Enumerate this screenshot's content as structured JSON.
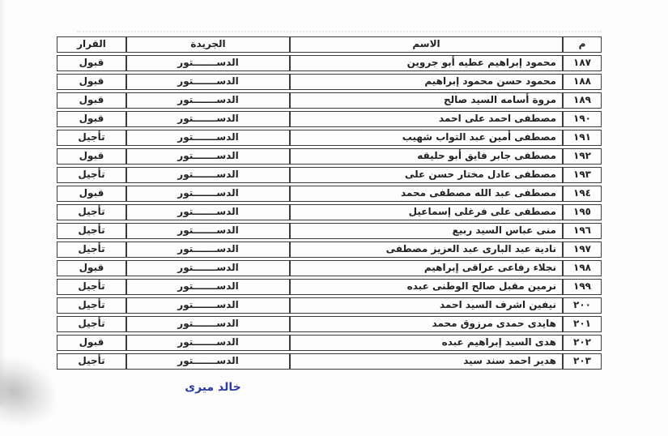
{
  "colors": {
    "page_bg": "#fdfdfd",
    "table_border": "#3b3b3b",
    "text": "#222222",
    "signature_blue": "#2b3aa6"
  },
  "table": {
    "headers": {
      "index": "م",
      "name": "الاسم",
      "newspaper": "الجريدة",
      "decision": "القرار"
    },
    "rows": [
      {
        "index": "١٨٧",
        "name": "محمود إبراهيم عطيه أبو جروين",
        "newspaper": "الدســـــــتور",
        "decision": "قبول"
      },
      {
        "index": "١٨٨",
        "name": "محمود حسن محمود إبراهيم",
        "newspaper": "الدســـــــتور",
        "decision": "قبول"
      },
      {
        "index": "١٨٩",
        "name": "مروة أسامه السيد صالح",
        "newspaper": "الدســـــــتور",
        "decision": "قبول"
      },
      {
        "index": "١٩٠",
        "name": "مصطفى احمد على احمد",
        "newspaper": "الدســـــــتور",
        "decision": "قبول"
      },
      {
        "index": "١٩١",
        "name": "مصطفى أمين عبد التواب شهيب",
        "newspaper": "الدســـــــتور",
        "decision": "تأجيل"
      },
      {
        "index": "١٩٢",
        "name": "مصطفى جابر فايق أبو حليقه",
        "newspaper": "الدســـــــتور",
        "decision": "قبول"
      },
      {
        "index": "١٩٣",
        "name": "مصطفى عادل مختار حسن على",
        "newspaper": "الدســـــــتور",
        "decision": "تأجيل"
      },
      {
        "index": "١٩٤",
        "name": "مصطفى عبد الله مصطفى محمد",
        "newspaper": "الدســـــــتور",
        "decision": "قبول"
      },
      {
        "index": "١٩٥",
        "name": "مصطفى على فرغلى إسماعيل",
        "newspaper": "الدســـــــتور",
        "decision": "تأجيل"
      },
      {
        "index": "١٩٦",
        "name": "منى عباس السيد ربيع",
        "newspaper": "الدســـــــتور",
        "decision": "تأجيل"
      },
      {
        "index": "١٩٧",
        "name": "نادية عبد البارى عبد العزيز مصطفى",
        "newspaper": "الدســـــــتور",
        "decision": "تأجيل"
      },
      {
        "index": "١٩٨",
        "name": "نجلاء رفاعى عراقى إبراهيم",
        "newspaper": "الدســـــــتور",
        "decision": "قبول"
      },
      {
        "index": "١٩٩",
        "name": "نرمين مقبل صالح الوطنى عبده",
        "newspaper": "الدســـــــتور",
        "decision": "تأجيل"
      },
      {
        "index": "٢٠٠",
        "name": "نيفين اشرف السيد احمد",
        "newspaper": "الدســـــــتور",
        "decision": "تأجيل"
      },
      {
        "index": "٢٠١",
        "name": "هايدى حمدى مرزوق محمد",
        "newspaper": "الدســـــــتور",
        "decision": "تأجيل"
      },
      {
        "index": "٢٠٢",
        "name": "هدى السيد إبراهيم عبده",
        "newspaper": "الدســـــــتور",
        "decision": "قبول"
      },
      {
        "index": "٢٠٣",
        "name": "هدير احمد سند سيد",
        "newspaper": "الدســـــــتور",
        "decision": "تأجيل"
      }
    ]
  },
  "footer": {
    "signature": "خالد ميرى"
  }
}
